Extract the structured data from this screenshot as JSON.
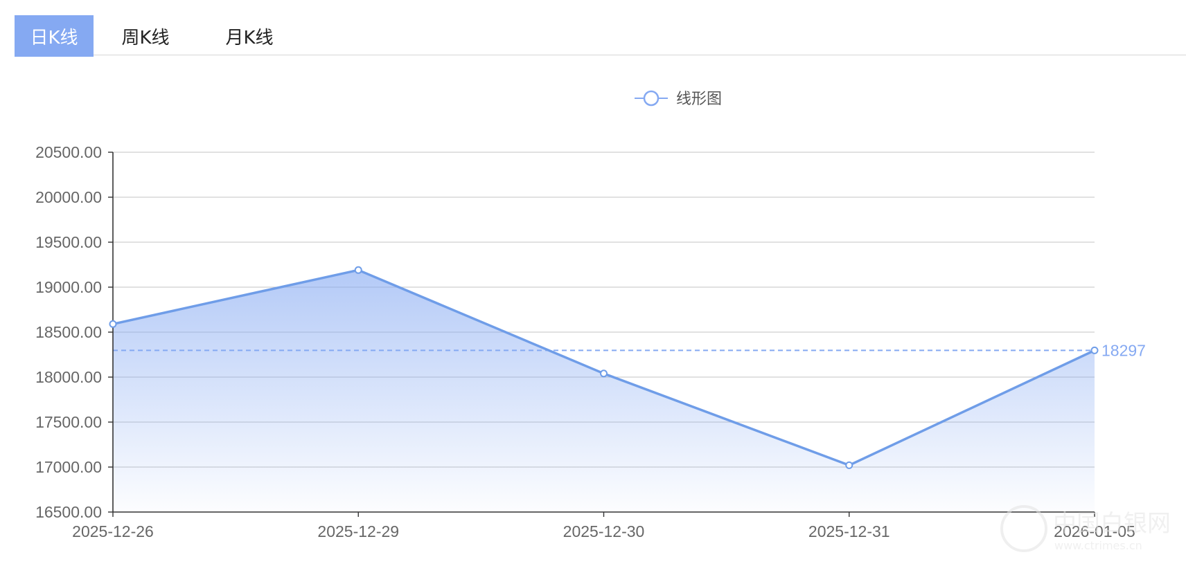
{
  "tabs": [
    {
      "label": "日K线",
      "active": true
    },
    {
      "label": "周K线",
      "active": false
    },
    {
      "label": "月K线",
      "active": false
    }
  ],
  "colors": {
    "accent": "#85a9f2",
    "line": "#6f9de8",
    "grid": "#cfcfcf",
    "axis": "#333333"
  },
  "chart_data": {
    "type": "area",
    "legend": {
      "label": "线形图",
      "position": "top-center"
    },
    "categories": [
      "2025-12-26",
      "2025-12-29",
      "2025-12-30",
      "2025-12-31",
      "2026-01-05"
    ],
    "series": [
      {
        "name": "线形图",
        "values": [
          18590,
          19190,
          18040,
          17020,
          18297
        ]
      }
    ],
    "ylim": [
      16500,
      20500
    ],
    "yticks": [
      16500,
      17000,
      17500,
      18000,
      18500,
      19000,
      19500,
      20000,
      20500
    ],
    "ytick_labels": [
      "16500.00",
      "17000.00",
      "17500.00",
      "18000.00",
      "18500.00",
      "19000.00",
      "19500.00",
      "20000.00",
      "20500.00"
    ],
    "markline": {
      "value": 18297,
      "label": "18297",
      "style": "dashed"
    },
    "grid": true
  },
  "watermark": {
    "text": "中国白银网",
    "domain": "www.ctrimes.cn"
  }
}
